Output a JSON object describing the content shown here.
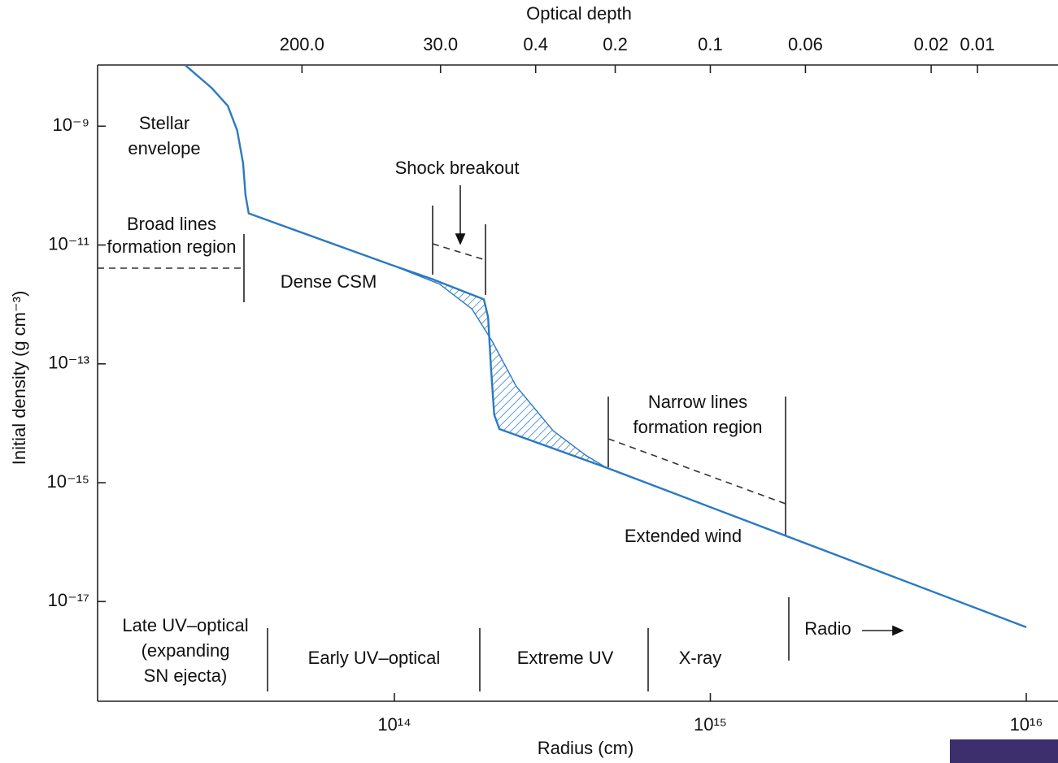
{
  "chart_data": {
    "type": "line",
    "x_label": "Radius (cm)",
    "y_label": "Initial density (g cm⁻³)",
    "top_axis_label": "Optical depth",
    "log_x": true,
    "log_y": true,
    "xlim": [
      11500000000000.0,
      1.26e+16
    ],
    "ylim": [
      2.1e-19,
      1.07e-08
    ],
    "xticks": [
      {
        "value": 100000000000000.0,
        "label": "10¹⁴"
      },
      {
        "value": 1000000000000000.0,
        "label": "10¹⁵"
      },
      {
        "value": 1e+16,
        "label": "10¹⁶"
      }
    ],
    "yticks": [
      {
        "value": 1e-17,
        "label": "10⁻¹⁷"
      },
      {
        "value": 1e-15,
        "label": "10⁻¹⁵"
      },
      {
        "value": 1e-13,
        "label": "10⁻¹³"
      },
      {
        "value": 1e-11,
        "label": "10⁻¹¹"
      },
      {
        "value": 1e-09,
        "label": "10⁻⁹"
      }
    ],
    "top_ticks": [
      {
        "value": 200,
        "label": "200.0",
        "x": 51000000000000.0
      },
      {
        "value": 30,
        "label": "30.0",
        "x": 140000000000000.0
      },
      {
        "value": 0.4,
        "label": "0.4",
        "x": 280000000000000.0
      },
      {
        "value": 0.2,
        "label": "0.2",
        "x": 500000000000000.0
      },
      {
        "value": 0.1,
        "label": "0.1",
        "x": 1000000000000000.0
      },
      {
        "value": 0.06,
        "label": "0.06",
        "x": 2000000000000000.0
      },
      {
        "value": 0.02,
        "label": "0.02",
        "x": 5000000000000000.0
      },
      {
        "value": 0.01,
        "label": "0.01",
        "x": 7000000000000000.0
      }
    ],
    "series": [
      {
        "color": "#2b79c2",
        "x": [
          21800000000000.0,
          26400000000000.0,
          29700000000000.0,
          31800000000000.0,
          33200000000000.0,
          33800000000000.0,
          34600000000000.0,
          97000000000000.0,
          131000000000000.0,
          192000000000000.0,
          198000000000000.0,
          202000000000000.0,
          207000000000000.0,
          215000000000000.0,
          467000000000000.0,
          1e+16
        ],
        "values": [
          1.06e-08,
          4.4e-09,
          2.2e-09,
          8.5e-10,
          2.4e-10,
          6.9e-11,
          3.4e-11,
          4.7e-12,
          2.7e-12,
          1.22e-12,
          6.1e-13,
          9.3e-14,
          1.4e-14,
          8e-15,
          1.81e-15,
          3.7e-18
        ]
      },
      {
        "color": "#2b79c2",
        "hatched": true,
        "x": [
          97000000000000.0,
          139000000000000.0,
          176000000000000.0,
          204000000000000.0,
          243000000000000.0,
          318000000000000.0,
          403000000000000.0,
          467000000000000.0
        ],
        "values": [
          4.7e-12,
          2.2e-12,
          8.4e-13,
          2.4e-13,
          4.2e-14,
          7.5e-15,
          2.9e-15,
          1.81e-15
        ]
      }
    ],
    "annotations": [
      [
        "Stellar",
        "envelope"
      ],
      [
        "Broad lines",
        "formation region"
      ],
      [
        "Dense CSM"
      ],
      [
        "Shock breakout"
      ],
      [
        "Narrow lines",
        "formation region"
      ],
      [
        "Extended wind"
      ],
      [
        "Late UV–optical",
        "(expanding",
        "SN ejecta)"
      ],
      [
        "Early UV–optical"
      ],
      [
        "Extreme UV"
      ],
      [
        "X-ray"
      ],
      [
        "Radio"
      ]
    ]
  }
}
